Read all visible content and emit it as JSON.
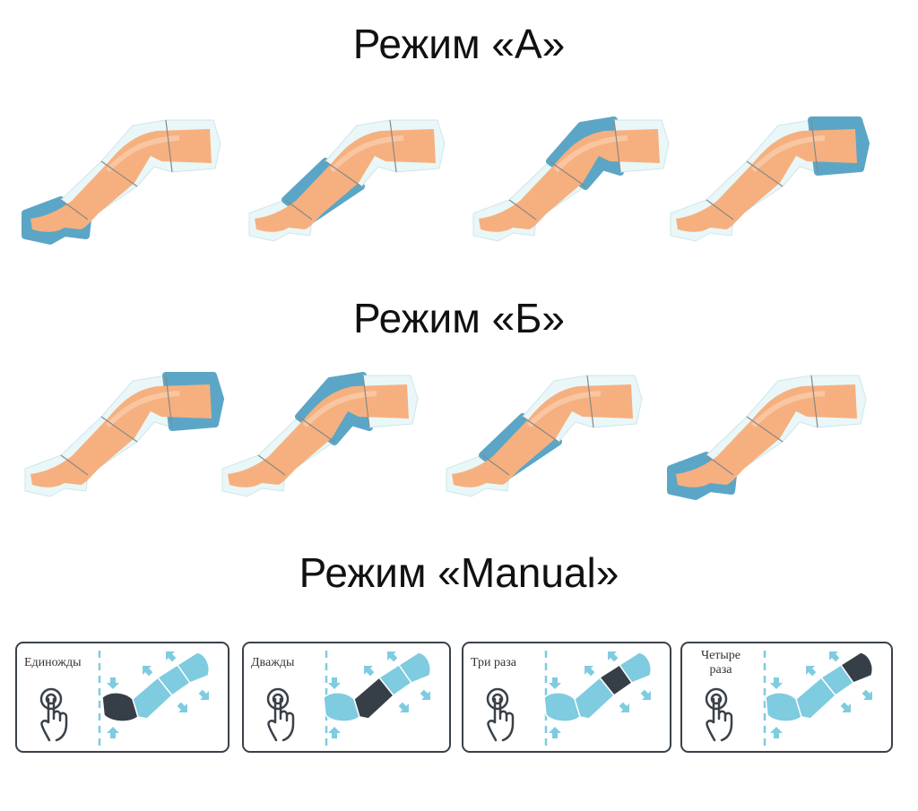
{
  "sections": {
    "mode_a": {
      "title": "Режим «А»",
      "active_segments": [
        "foot",
        "shin",
        "knee",
        "thigh"
      ]
    },
    "mode_b": {
      "title": "Режим «Б»",
      "active_segments": [
        "thigh",
        "knee",
        "shin",
        "foot"
      ]
    },
    "mode_manual": {
      "title": "Режим «Manual»",
      "panels": [
        {
          "label": "Единожды",
          "active_segment": 1
        },
        {
          "label": "Дважды",
          "active_segment": 2
        },
        {
          "label": "Три раза",
          "active_segment": 3
        },
        {
          "label": "Четыре раза",
          "active_segment": 4
        }
      ]
    }
  },
  "colors": {
    "active_sleeve": "#5ba6c6",
    "sleeve": "#e9f7f8",
    "skin": "#f6b07f",
    "manual_dark": "#363f47",
    "manual_light": "#7fcbe0"
  }
}
